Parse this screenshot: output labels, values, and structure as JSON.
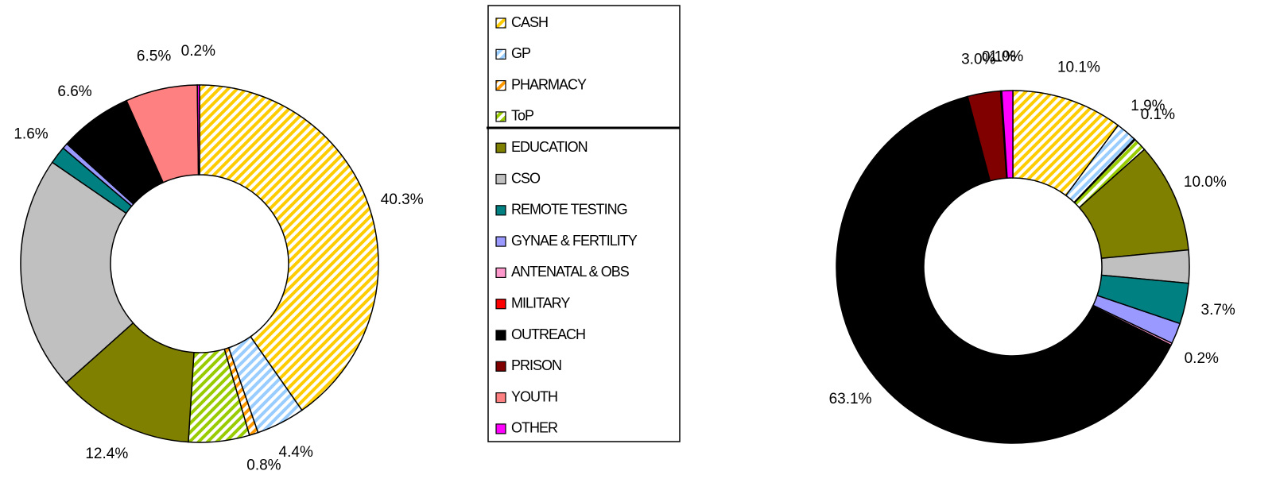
{
  "legend": {
    "categories": [
      "CASH",
      "GP",
      "PHARMACY",
      "ToP",
      "EDUCATION",
      "CSO",
      "REMOTE TESTING",
      "GYNAE & FERTILITY",
      "ANTENATAL & OBS",
      "MILITARY",
      "OUTREACH",
      "PRISON",
      "YOUTH",
      "OTHER"
    ],
    "colors": [
      "#ffcc00",
      "#99ccff",
      "#ff9900",
      "#99cc00",
      "#808000",
      "#c0c0c0",
      "#008080",
      "#9999ff",
      "#ff99cc",
      "#ff0000",
      "#000000",
      "#800000",
      "#ff8080",
      "#ff00ff"
    ],
    "hatched": [
      true,
      true,
      true,
      true,
      false,
      false,
      false,
      false,
      false,
      false,
      false,
      false,
      false,
      false
    ]
  },
  "chart_data": [
    {
      "type": "pie",
      "donut": true,
      "values": [
        40.3,
        4.4,
        0.8,
        5.5,
        12.4,
        21.2,
        1.6,
        0.5,
        0,
        0,
        6.6,
        0,
        6.5,
        0.2
      ],
      "value_labels": [
        "40.3%",
        "4.4%",
        "0.8%",
        null,
        "12.4%",
        null,
        "1.6%",
        null,
        null,
        null,
        "6.6%",
        null,
        "6.5%",
        "0.2%"
      ]
    },
    {
      "type": "pie",
      "donut": true,
      "values": [
        10.1,
        1.9,
        0.1,
        1.2,
        10.0,
        3.0,
        3.7,
        1.9,
        0.2,
        0,
        63.1,
        3.0,
        0.1,
        1.0
      ],
      "value_labels": [
        "10.1%",
        "1.9%",
        "0.1%",
        null,
        "10.0%",
        null,
        "3.7%",
        null,
        "0.2%",
        null,
        "63.1%",
        "3.0%",
        "0.1%",
        "1.0%"
      ]
    }
  ]
}
